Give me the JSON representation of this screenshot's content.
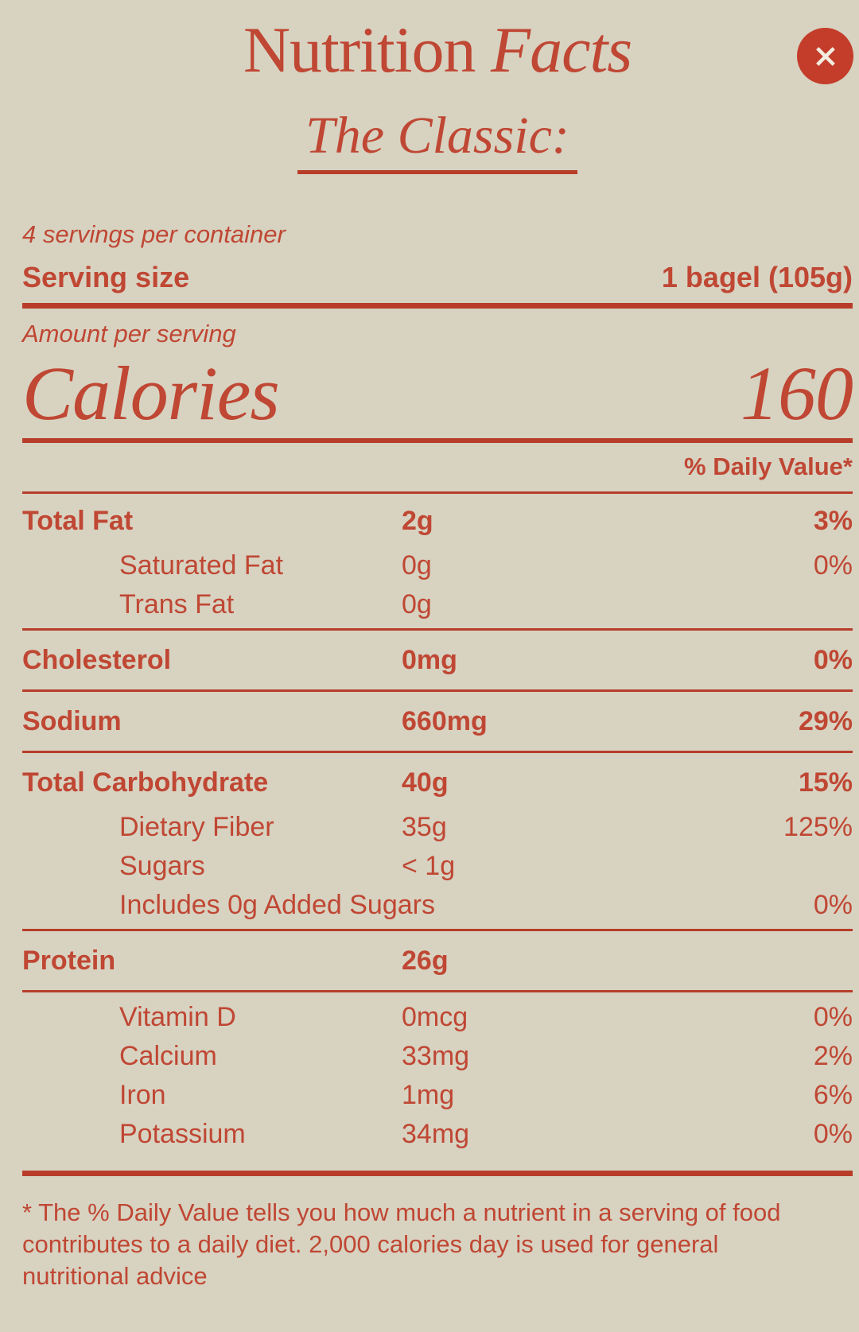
{
  "page": {
    "background_color": "#d8d2c1",
    "accent_color": "#bf4733",
    "rule_color": "#b73d2a",
    "close_button_color": "#c33d2a",
    "close_x_color": "#f2ede0"
  },
  "header": {
    "title_main": "Nutrition",
    "title_accent": "Facts",
    "subtitle": "The Classic:",
    "close_icon_glyph": "✕",
    "close_label": "Close"
  },
  "serving": {
    "per_container": "4 servings per container",
    "size_label": "Serving size",
    "size_value": "1 bagel (105g)",
    "amount_label": "Amount per serving",
    "calories_label": "Calories",
    "calories_value": "160"
  },
  "table": {
    "daily_value_header": "% Daily Value*",
    "nutrients": [
      {
        "label": "Total Fat",
        "amount": "2g",
        "dv": "3%",
        "bold": true,
        "indent": false,
        "divider_after": false
      },
      {
        "label": "Saturated Fat",
        "amount": "0g",
        "dv": "0%",
        "bold": false,
        "indent": true,
        "divider_after": false
      },
      {
        "label": "Trans Fat",
        "amount": "0g",
        "dv": "",
        "bold": false,
        "indent": true,
        "divider_after": true
      },
      {
        "label": "Cholesterol",
        "amount": "0mg",
        "dv": "0%",
        "bold": true,
        "indent": false,
        "divider_after": true
      },
      {
        "label": "Sodium",
        "amount": "660mg",
        "dv": "29%",
        "bold": true,
        "indent": false,
        "divider_after": true
      },
      {
        "label": "Total Carbohydrate",
        "amount": "40g",
        "dv": "15%",
        "bold": true,
        "indent": false,
        "divider_after": false
      },
      {
        "label": "Dietary Fiber",
        "amount": "35g",
        "dv": "125%",
        "bold": false,
        "indent": true,
        "divider_after": false
      },
      {
        "label": "Sugars",
        "amount": "< 1g",
        "dv": "",
        "bold": false,
        "indent": true,
        "divider_after": false
      },
      {
        "label": "Includes 0g Added Sugars",
        "amount": "",
        "dv": "0%",
        "bold": false,
        "indent": true,
        "divider_after": true
      },
      {
        "label": "Protein",
        "amount": "26g",
        "dv": "",
        "bold": true,
        "indent": false,
        "divider_after": true
      },
      {
        "label": "Vitamin D",
        "amount": "0mcg",
        "dv": "0%",
        "bold": false,
        "indent": true,
        "divider_after": false
      },
      {
        "label": "Calcium",
        "amount": "33mg",
        "dv": "2%",
        "bold": false,
        "indent": true,
        "divider_after": false
      },
      {
        "label": "Iron",
        "amount": "1mg",
        "dv": "6%",
        "bold": false,
        "indent": true,
        "divider_after": false
      },
      {
        "label": "Potassium",
        "amount": "34mg",
        "dv": "0%",
        "bold": false,
        "indent": true,
        "divider_after": false
      }
    ]
  },
  "footnote": {
    "text": "* The % Daily Value tells you how much a nutrient in a serving of food contributes to a daily diet. 2,000 calories day is used for general nutritional advice"
  }
}
